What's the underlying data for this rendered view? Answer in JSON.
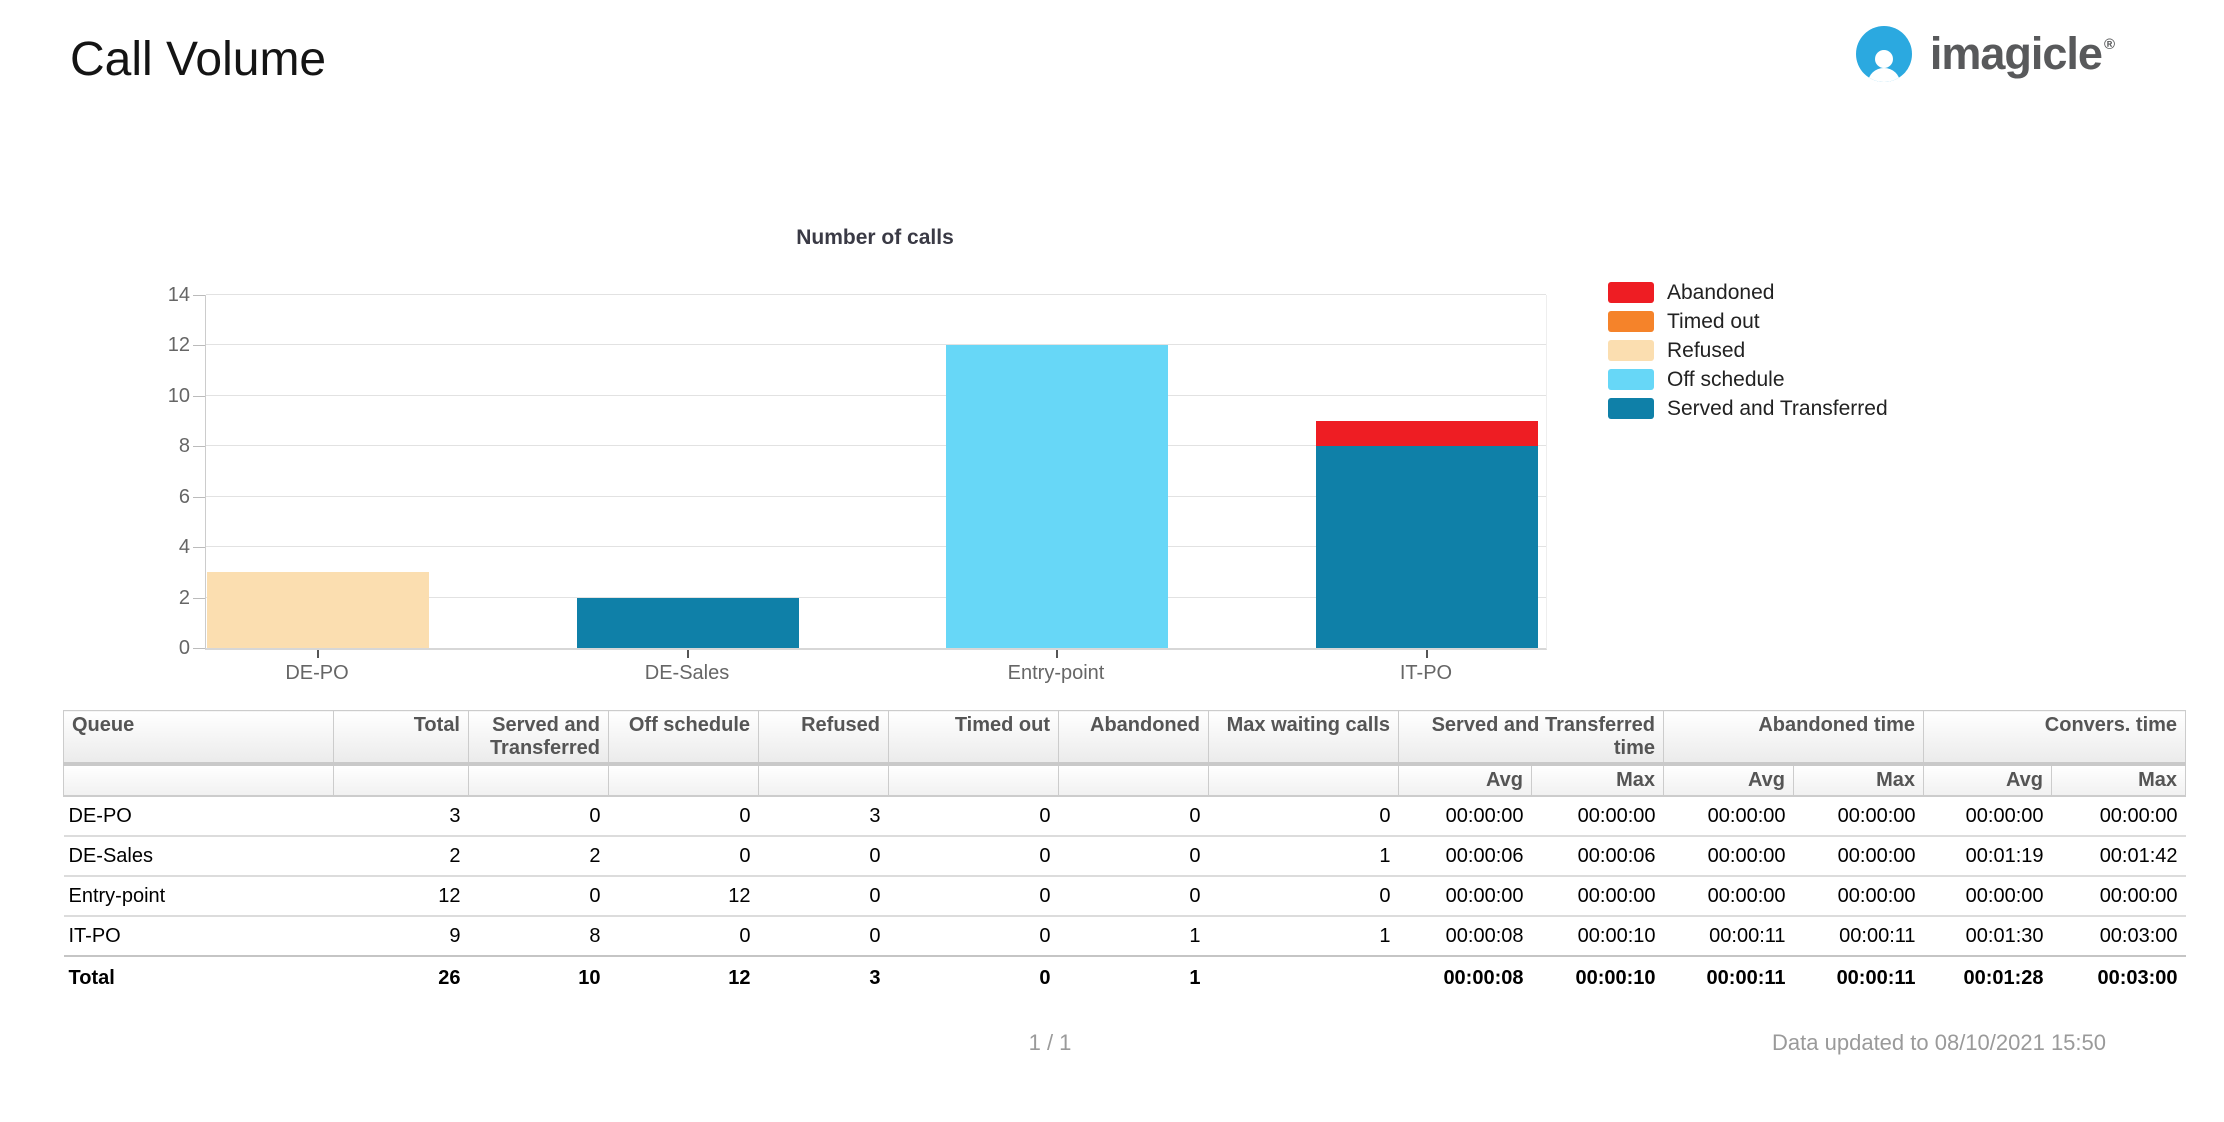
{
  "header": {
    "title": "Call Volume",
    "brand": "imagicle",
    "registered": "®"
  },
  "colors": {
    "brand_blue": "#2BA9E0",
    "brand_gray": "#58595b",
    "abandoned": "#EE1D23",
    "timed_out": "#F5832A",
    "refused": "#FBDEB0",
    "off_schedule": "#67D7F7",
    "served": "#0F80A8"
  },
  "chart_data": {
    "type": "bar",
    "stacked": true,
    "title": "Number of calls",
    "categories": [
      "DE-PO",
      "DE-Sales",
      "Entry-point",
      "IT-PO"
    ],
    "series": [
      {
        "name": "Abandoned",
        "color": "#EE1D23",
        "values": [
          0,
          0,
          0,
          1
        ]
      },
      {
        "name": "Timed out",
        "color": "#F5832A",
        "values": [
          0,
          0,
          0,
          0
        ]
      },
      {
        "name": "Refused",
        "color": "#FBDEB0",
        "values": [
          3,
          0,
          0,
          0
        ]
      },
      {
        "name": "Off schedule",
        "color": "#67D7F7",
        "values": [
          0,
          0,
          12,
          0
        ]
      },
      {
        "name": "Served and Transferred",
        "color": "#0F80A8",
        "values": [
          0,
          2,
          0,
          8
        ]
      }
    ],
    "xlabel": "",
    "ylabel": "",
    "ylim": [
      0,
      14
    ],
    "yticks": [
      0,
      2,
      4,
      6,
      8,
      10,
      12,
      14
    ],
    "grid": true,
    "legend_position": "right"
  },
  "table": {
    "headers": {
      "queue": "Queue",
      "total": "Total",
      "served": "Served and Transferred",
      "off_schedule": "Off schedule",
      "refused": "Refused",
      "timed_out": "Timed out",
      "abandoned": "Abandoned",
      "max_waiting": "Max waiting calls",
      "groups": [
        {
          "label": "Served and Transferred time"
        },
        {
          "label": "Abandoned time"
        },
        {
          "label": "Convers. time"
        }
      ],
      "avg": "Avg",
      "max": "Max"
    },
    "rows": [
      [
        "DE-PO",
        "3",
        "0",
        "0",
        "3",
        "0",
        "0",
        "0",
        "00:00:00",
        "00:00:00",
        "00:00:00",
        "00:00:00",
        "00:00:00",
        "00:00:00"
      ],
      [
        "DE-Sales",
        "2",
        "2",
        "0",
        "0",
        "0",
        "0",
        "1",
        "00:00:06",
        "00:00:06",
        "00:00:00",
        "00:00:00",
        "00:01:19",
        "00:01:42"
      ],
      [
        "Entry-point",
        "12",
        "0",
        "12",
        "0",
        "0",
        "0",
        "0",
        "00:00:00",
        "00:00:00",
        "00:00:00",
        "00:00:00",
        "00:00:00",
        "00:00:00"
      ],
      [
        "IT-PO",
        "9",
        "8",
        "0",
        "0",
        "0",
        "1",
        "1",
        "00:00:08",
        "00:00:10",
        "00:00:11",
        "00:00:11",
        "00:01:30",
        "00:03:00"
      ]
    ],
    "total_row": [
      "Total",
      "26",
      "10",
      "12",
      "3",
      "0",
      "1",
      "",
      "00:00:08",
      "00:00:10",
      "00:00:11",
      "00:00:11",
      "00:01:28",
      "00:03:00"
    ]
  },
  "footer": {
    "page_indicator": "1 / 1",
    "updated": "Data updated to 08/10/2021 15:50"
  }
}
